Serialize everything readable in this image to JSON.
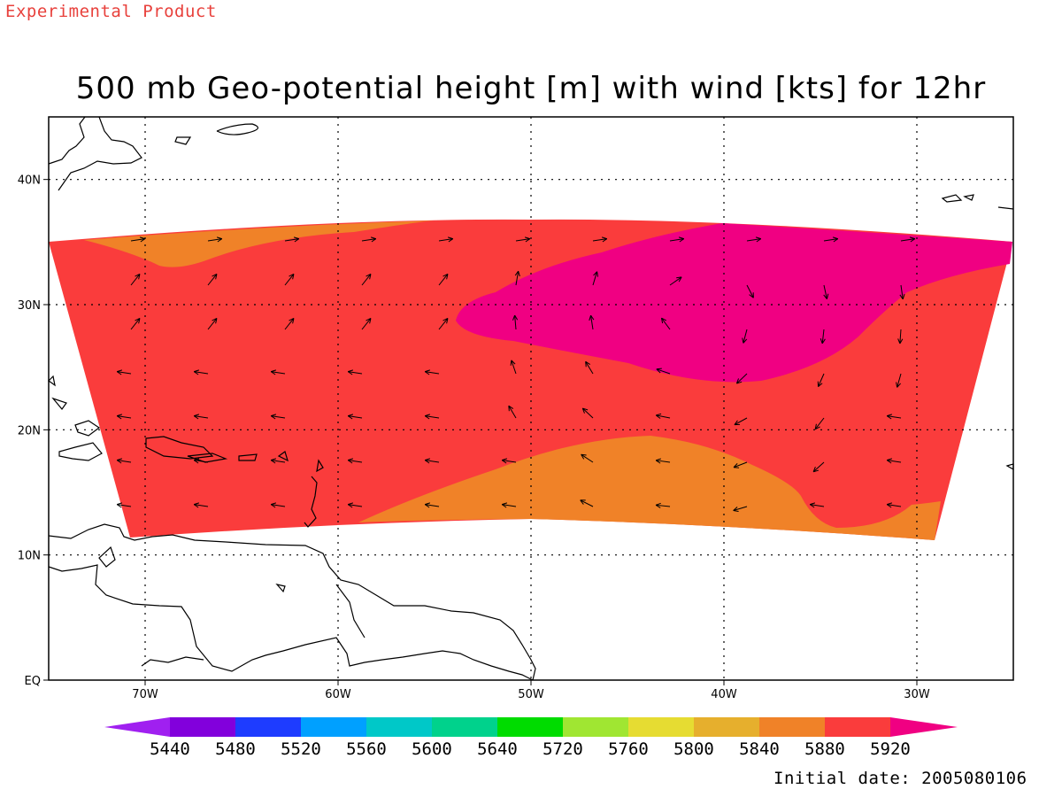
{
  "header": {
    "experimental_label": "Experimental Product",
    "title": "500 mb Geo-potential height [m] with wind [kts] for 12hr"
  },
  "footer": {
    "initial_date": "Initial date: 2005080106"
  },
  "map": {
    "projection": "lat-lon",
    "lon_range": [
      -75,
      -25
    ],
    "lat_range": [
      0,
      45
    ],
    "grid": "dotted",
    "lat_ticks": [
      {
        "lat": 40,
        "label": "40N"
      },
      {
        "lat": 30,
        "label": "30N"
      },
      {
        "lat": 20,
        "label": "20N"
      },
      {
        "lat": 10,
        "label": "10N"
      },
      {
        "lat": 0,
        "label": "EQ"
      }
    ],
    "lon_ticks": [
      {
        "lon": -70,
        "label": "70W"
      },
      {
        "lon": -60,
        "label": "60W"
      },
      {
        "lon": -50,
        "label": "50W"
      },
      {
        "lon": -40,
        "label": "40W"
      },
      {
        "lon": -30,
        "label": "30W"
      }
    ]
  },
  "legend": {
    "levels": [
      "5440",
      "5480",
      "5520",
      "5560",
      "5600",
      "5640",
      "5720",
      "5760",
      "5800",
      "5840",
      "5880",
      "5920"
    ],
    "colors": [
      "#a020f0",
      "#8200dc",
      "#1e3cff",
      "#00a0ff",
      "#00c8c8",
      "#00d28c",
      "#00dc00",
      "#a0e632",
      "#e6dc32",
      "#e6af2d",
      "#f08228",
      "#fa3c3c",
      "#f00082"
    ]
  },
  "fill_colors": {
    "5840_5880": "#f08228",
    "5880_5920": "#fa3c3c",
    "above_5920": "#f00082"
  }
}
